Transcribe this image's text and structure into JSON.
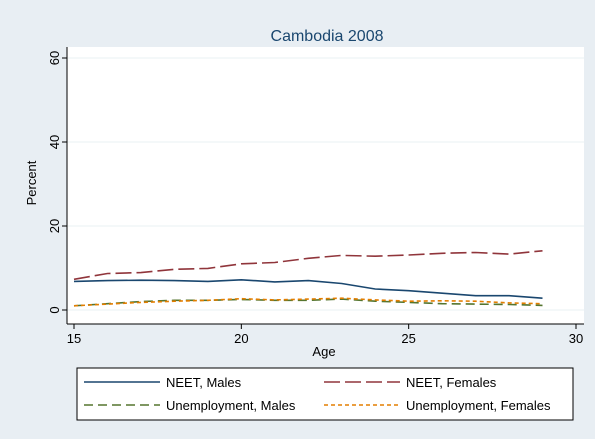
{
  "chart_data": {
    "type": "line",
    "title": "Cambodia 2008",
    "xlabel": "Age",
    "ylabel": "Percent",
    "xlim": [
      15,
      30
    ],
    "ylim": [
      0,
      60
    ],
    "x_ticks": [
      "15",
      "20",
      "25",
      "30"
    ],
    "y_ticks": [
      "0",
      "20",
      "40",
      "60"
    ],
    "grid": "horizontal",
    "legend_position": "bottom",
    "x": [
      15,
      16,
      17,
      18,
      19,
      20,
      21,
      22,
      23,
      24,
      25,
      26,
      27,
      28,
      29
    ],
    "series": [
      {
        "name": "NEET, Males",
        "color": "#1a476f",
        "dash": "solid",
        "values": [
          6.8,
          7.0,
          7.1,
          7.0,
          6.8,
          7.2,
          6.7,
          7.0,
          6.3,
          5.0,
          4.6,
          4.0,
          3.4,
          3.4,
          2.8
        ]
      },
      {
        "name": "NEET, Females",
        "color": "#90353b",
        "dash": "longdash",
        "values": [
          7.3,
          8.7,
          8.9,
          9.7,
          9.9,
          11.0,
          11.3,
          12.3,
          13.0,
          12.8,
          13.1,
          13.5,
          13.7,
          13.3,
          14.1
        ]
      },
      {
        "name": "Unemployment, Males",
        "color": "#55752f",
        "dash": "dash",
        "values": [
          1.0,
          1.5,
          2.0,
          2.3,
          2.3,
          2.5,
          2.3,
          2.3,
          2.6,
          2.1,
          1.8,
          1.5,
          1.4,
          1.3,
          1.1
        ]
      },
      {
        "name": "Unemployment, Females",
        "color": "#e37e00",
        "dash": "shortdash",
        "values": [
          1.0,
          1.4,
          1.8,
          2.1,
          2.3,
          2.7,
          2.4,
          2.6,
          2.8,
          2.4,
          2.1,
          2.2,
          2.1,
          1.7,
          1.5
        ]
      }
    ]
  }
}
